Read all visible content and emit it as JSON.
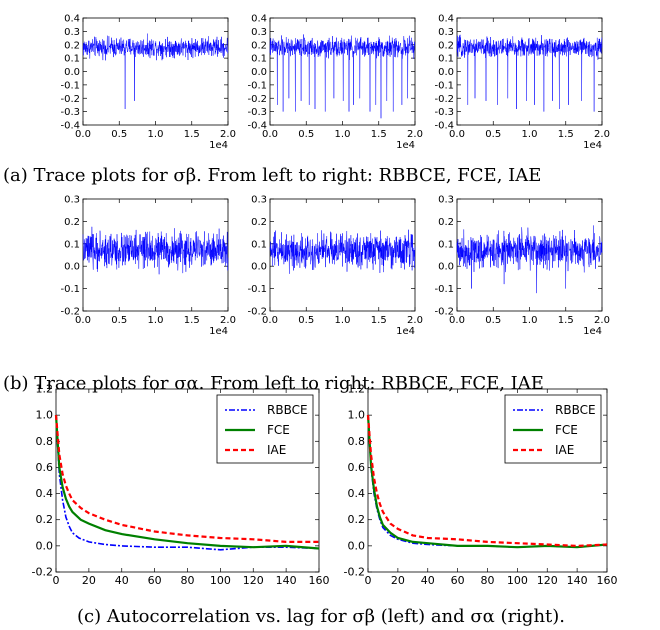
{
  "captions": [
    "(a) Trace plots for σβ. From left to right: RBBCE, FCE, IAE",
    "(b) Trace plots for σα. From left to right: RBBCE, FCE, IAE",
    "(c) Autocorrelation vs. lag for σβ (left) and σα (right)."
  ],
  "colors": {
    "trace": "#0000ff",
    "rbbce": "#0000ff",
    "fce": "#008000",
    "iae": "#ff0000"
  },
  "chart_data": [
    {
      "type": "line",
      "panel": "a-RBBCE",
      "x_range": [
        0,
        20000
      ],
      "ylim": [
        -0.4,
        0.4
      ],
      "yticks": [
        "0.4",
        "0.3",
        "0.2",
        "0.1",
        "0.0",
        "-0.1",
        "-0.2",
        "-0.3",
        "-0.4"
      ],
      "xticks": [
        "0.0",
        "0.5",
        "1.0",
        "1.5",
        "2.0"
      ],
      "x_multiplier": "1e4",
      "trace": {
        "mean": 0.18,
        "spread": 0.055,
        "dips": [
          [
            5800,
            -0.28
          ],
          [
            7100,
            -0.22
          ]
        ]
      }
    },
    {
      "type": "line",
      "panel": "a-FCE",
      "x_range": [
        0,
        20000
      ],
      "ylim": [
        -0.4,
        0.4
      ],
      "yticks": [
        "0.4",
        "0.3",
        "0.2",
        "0.1",
        "0.0",
        "-0.1",
        "-0.2",
        "-0.3",
        "-0.4"
      ],
      "xticks": [
        "0.0",
        "0.5",
        "1.0",
        "1.5",
        "2.0"
      ],
      "x_multiplier": "1e4",
      "trace": {
        "mean": 0.18,
        "spread": 0.055,
        "dips": [
          [
            1000,
            -0.25
          ],
          [
            1800,
            -0.3
          ],
          [
            2600,
            -0.2
          ],
          [
            3500,
            -0.3
          ],
          [
            4300,
            -0.22
          ],
          [
            5400,
            -0.25
          ],
          [
            6200,
            -0.28
          ],
          [
            7600,
            -0.3
          ],
          [
            8800,
            -0.2
          ],
          [
            10100,
            -0.22
          ],
          [
            10900,
            -0.3
          ],
          [
            11500,
            -0.25
          ],
          [
            12400,
            -0.2
          ],
          [
            13800,
            -0.3
          ],
          [
            14600,
            -0.25
          ],
          [
            15300,
            -0.35
          ],
          [
            16100,
            -0.22
          ],
          [
            17000,
            -0.3
          ],
          [
            18200,
            -0.25
          ],
          [
            19000,
            -0.2
          ]
        ]
      }
    },
    {
      "type": "line",
      "panel": "a-IAE",
      "x_range": [
        0,
        20000
      ],
      "ylim": [
        -0.4,
        0.4
      ],
      "yticks": [
        "0.4",
        "0.3",
        "0.2",
        "0.1",
        "0.0",
        "-0.1",
        "-0.2",
        "-0.3",
        "-0.4"
      ],
      "xticks": [
        "0.0",
        "0.5",
        "1.0",
        "1.5",
        "2.0"
      ],
      "x_multiplier": "1e4",
      "trace": {
        "mean": 0.18,
        "spread": 0.055,
        "dips": [
          [
            1500,
            -0.25
          ],
          [
            2500,
            -0.2
          ],
          [
            4000,
            -0.22
          ],
          [
            5600,
            -0.25
          ],
          [
            7000,
            -0.2
          ],
          [
            8200,
            -0.28
          ],
          [
            9600,
            -0.22
          ],
          [
            10700,
            -0.25
          ],
          [
            12000,
            -0.3
          ],
          [
            13200,
            -0.22
          ],
          [
            14100,
            -0.28
          ],
          [
            15400,
            -0.25
          ],
          [
            17200,
            -0.22
          ],
          [
            18900,
            -0.3
          ]
        ]
      }
    },
    {
      "type": "line",
      "panel": "b-RBBCE",
      "x_range": [
        0,
        20000
      ],
      "ylim": [
        -0.2,
        0.3
      ],
      "yticks": [
        "0.3",
        "0.2",
        "0.1",
        "0.0",
        "-0.1",
        "-0.2"
      ],
      "xticks": [
        "0.0",
        "0.5",
        "1.0",
        "1.5",
        "2.0"
      ],
      "x_multiplier": "1e4",
      "trace": {
        "mean": 0.07,
        "spread": 0.06,
        "dips": []
      }
    },
    {
      "type": "line",
      "panel": "b-FCE",
      "x_range": [
        0,
        20000
      ],
      "ylim": [
        -0.2,
        0.3
      ],
      "yticks": [
        "0.3",
        "0.2",
        "0.1",
        "0.0",
        "-0.1",
        "-0.2"
      ],
      "xticks": [
        "0.0",
        "0.5",
        "1.0",
        "1.5",
        "2.0"
      ],
      "x_multiplier": "1e4",
      "trace": {
        "mean": 0.07,
        "spread": 0.06,
        "dips": []
      }
    },
    {
      "type": "line",
      "panel": "b-IAE",
      "x_range": [
        0,
        20000
      ],
      "ylim": [
        -0.2,
        0.3
      ],
      "yticks": [
        "0.3",
        "0.2",
        "0.1",
        "0.0",
        "-0.1",
        "-0.2"
      ],
      "xticks": [
        "0.0",
        "0.5",
        "1.0",
        "1.5",
        "2.0"
      ],
      "x_multiplier": "1e4",
      "trace": {
        "mean": 0.07,
        "spread": 0.06,
        "dips": [
          [
            2000,
            -0.1
          ],
          [
            6500,
            -0.08
          ],
          [
            11000,
            -0.12
          ],
          [
            15000,
            -0.1
          ]
        ]
      }
    },
    {
      "type": "line",
      "panel": "c-left",
      "x_range": [
        0,
        160
      ],
      "ylim": [
        -0.2,
        1.2
      ],
      "yticks": [
        "1.2",
        "1.0",
        "0.8",
        "0.6",
        "0.4",
        "0.2",
        "0.0",
        "-0.2"
      ],
      "xticks": [
        "0",
        "20",
        "40",
        "60",
        "80",
        "100",
        "120",
        "140",
        "160"
      ],
      "legend": "top-right",
      "series": [
        {
          "name": "RBBCE",
          "style": "dashdot",
          "x": [
            0,
            2,
            4,
            6,
            8,
            10,
            14,
            20,
            30,
            40,
            60,
            80,
            100,
            120,
            140,
            160
          ],
          "y": [
            1.0,
            0.55,
            0.35,
            0.22,
            0.15,
            0.1,
            0.06,
            0.03,
            0.01,
            0.0,
            -0.01,
            -0.01,
            -0.03,
            -0.01,
            -0.01,
            -0.02
          ]
        },
        {
          "name": "FCE",
          "style": "solid",
          "x": [
            0,
            2,
            4,
            6,
            8,
            10,
            15,
            20,
            30,
            40,
            60,
            80,
            100,
            120,
            140,
            160
          ],
          "y": [
            1.0,
            0.6,
            0.45,
            0.36,
            0.3,
            0.26,
            0.2,
            0.17,
            0.12,
            0.09,
            0.05,
            0.02,
            0.0,
            -0.01,
            0.0,
            -0.02
          ]
        },
        {
          "name": "IAE",
          "style": "dashed",
          "x": [
            0,
            2,
            4,
            6,
            8,
            10,
            15,
            20,
            30,
            40,
            60,
            80,
            100,
            120,
            140,
            160
          ],
          "y": [
            1.0,
            0.7,
            0.55,
            0.46,
            0.4,
            0.35,
            0.29,
            0.25,
            0.2,
            0.16,
            0.11,
            0.08,
            0.06,
            0.05,
            0.03,
            0.03
          ]
        }
      ]
    },
    {
      "type": "line",
      "panel": "c-right",
      "x_range": [
        0,
        160
      ],
      "ylim": [
        -0.2,
        1.2
      ],
      "yticks": [
        "1.2",
        "1.0",
        "0.8",
        "0.6",
        "0.4",
        "0.2",
        "0.0",
        "-0.2"
      ],
      "xticks": [
        "0",
        "20",
        "40",
        "60",
        "80",
        "100",
        "120",
        "140",
        "160"
      ],
      "legend": "top-right",
      "series": [
        {
          "name": "RBBCE",
          "style": "dashdot",
          "x": [
            0,
            2,
            4,
            6,
            8,
            10,
            15,
            20,
            30,
            40,
            60,
            80,
            100,
            120,
            140,
            160
          ],
          "y": [
            1.0,
            0.6,
            0.4,
            0.28,
            0.2,
            0.14,
            0.08,
            0.05,
            0.02,
            0.01,
            0.0,
            0.0,
            -0.01,
            0.0,
            -0.01,
            0.01
          ]
        },
        {
          "name": "FCE",
          "style": "solid",
          "x": [
            0,
            2,
            4,
            6,
            8,
            10,
            15,
            20,
            30,
            40,
            60,
            80,
            100,
            120,
            140,
            160
          ],
          "y": [
            1.0,
            0.62,
            0.43,
            0.3,
            0.22,
            0.16,
            0.1,
            0.06,
            0.03,
            0.02,
            0.0,
            0.0,
            -0.01,
            0.0,
            -0.01,
            0.01
          ]
        },
        {
          "name": "IAE",
          "style": "dashed",
          "x": [
            0,
            2,
            4,
            6,
            8,
            10,
            15,
            20,
            30,
            40,
            60,
            80,
            100,
            120,
            140,
            160
          ],
          "y": [
            1.0,
            0.7,
            0.52,
            0.4,
            0.32,
            0.26,
            0.17,
            0.13,
            0.08,
            0.06,
            0.05,
            0.03,
            0.02,
            0.01,
            0.0,
            0.01
          ]
        }
      ]
    }
  ]
}
